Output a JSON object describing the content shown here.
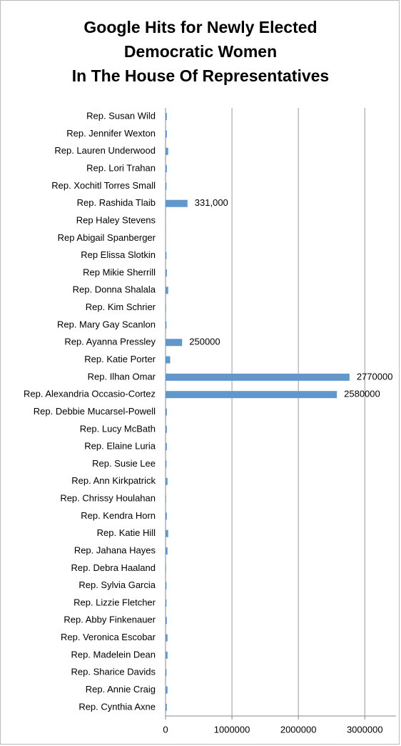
{
  "chart_data": {
    "type": "barh",
    "title": [
      "Google Hits for Newly Elected",
      "Democratic Women",
      "In The House Of Representatives"
    ],
    "categories": [
      "Rep. Susan Wild",
      "Rep. Jennifer Wexton",
      "Rep. Lauren Underwood",
      "Rep. Lori Trahan",
      "Rep. Xochitl Torres Small",
      "Rep. Rashida Tlaib",
      "Rep Haley Stevens",
      "Rep Abigail Spanberger",
      "Rep Elissa Slotkin",
      "Rep Mikie Sherrill",
      "Rep. Donna Shalala",
      "Rep. Kim Schrier",
      "Rep. Mary Gay Scanlon",
      "Rep. Ayanna Pressley",
      "Rep. Katie Porter",
      "Rep. Ilhan Omar",
      "Rep. Alexandria Occasio-Cortez",
      "Rep. Debbie Mucarsel-Powell",
      "Rep. Lucy McBath",
      "Rep. Elaine Luria",
      "Rep. Susie Lee",
      "Rep. Ann Kirkpatrick",
      "Rep. Chrissy Houlahan",
      "Rep. Kendra Horn",
      "Rep. Katie Hill",
      "Rep. Jahana Hayes",
      "Rep. Debra Haaland",
      "Rep. Sylvia Garcia",
      "Rep. Lizzie Fletcher",
      "Rep. Abby Finkenauer",
      "Rep. Veronica Escobar",
      "Rep. Madelein Dean",
      "Rep. Sharice Davids",
      "Rep. Annie Craig",
      "Rep. Cynthia Axne"
    ],
    "values": [
      20000,
      20000,
      40000,
      20000,
      15000,
      331000,
      5000,
      5000,
      15000,
      20000,
      40000,
      8000,
      15000,
      250000,
      70000,
      2770000,
      2580000,
      20000,
      20000,
      20000,
      15000,
      30000,
      8000,
      20000,
      40000,
      30000,
      8000,
      15000,
      15000,
      20000,
      30000,
      30000,
      15000,
      30000,
      20000
    ],
    "value_labels": [
      null,
      null,
      null,
      null,
      null,
      "331,000",
      null,
      null,
      null,
      null,
      null,
      null,
      null,
      "250000",
      null,
      "2770000",
      "2580000",
      null,
      null,
      null,
      null,
      null,
      null,
      null,
      null,
      null,
      null,
      null,
      null,
      null,
      null,
      null,
      null,
      null,
      null
    ],
    "color": "#6297cc",
    "xlim": [
      0,
      3470000
    ],
    "xticks": [
      0,
      1000000,
      2000000,
      3000000
    ],
    "grid": true
  }
}
